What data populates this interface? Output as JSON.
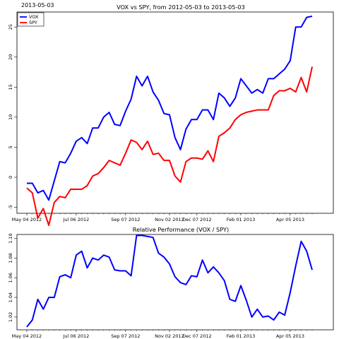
{
  "corner_label": "2013-05-03",
  "chart_data": [
    {
      "type": "line",
      "title": "VOX vs SPY, from 2012-05-03 to 2013-05-03",
      "xlabel": "",
      "ylabel": "",
      "x_tick_labels": [
        "May 04 2012",
        "Jul 06 2012",
        "Sep 07 2012",
        "Nov 02 2012",
        "Dec 07 2012",
        "Feb 01 2013",
        "Apr 05 2013"
      ],
      "x_tick_index": [
        0,
        9,
        18,
        26,
        31,
        39,
        48
      ],
      "ylim": [
        -6,
        27.5
      ],
      "y_ticks": [
        -5,
        0,
        5,
        10,
        15,
        20,
        25
      ],
      "grid": false,
      "legend": {
        "position": "top-left"
      },
      "series": [
        {
          "name": "VOX",
          "color": "#0000ff",
          "values": [
            -1,
            -1,
            -2.6,
            -2.2,
            -3.8,
            -0.6,
            2.6,
            2.4,
            4,
            6,
            6.6,
            5.6,
            8.2,
            8.2,
            10,
            10.8,
            8.8,
            8.6,
            11,
            13,
            16.8,
            15.2,
            16.8,
            14.2,
            12.8,
            10.6,
            10.4,
            6.6,
            4.6,
            8,
            9.6,
            9.6,
            11.2,
            11.2,
            9.6,
            14,
            13.2,
            11.8,
            13.2,
            16.4,
            15.2,
            14,
            14.6,
            14,
            16.4,
            16.4,
            17.2,
            18,
            19.4,
            25,
            25,
            26.6,
            26.8
          ]
        },
        {
          "name": "SPY",
          "color": "#ff0000",
          "values": [
            -1.8,
            -2.6,
            -6.8,
            -5.2,
            -8,
            -4.2,
            -3.2,
            -3.4,
            -2,
            -2,
            -2,
            -1.4,
            0.2,
            0.6,
            1.6,
            2.8,
            2.4,
            2,
            4,
            6.2,
            5.8,
            4.6,
            6,
            3.8,
            4,
            2.8,
            2.8,
            0.2,
            -0.8,
            2.6,
            3.2,
            3.2,
            3,
            4.4,
            2.6,
            6.8,
            7.4,
            8.2,
            9.6,
            10.4,
            10.8,
            11,
            11.2,
            11.2,
            11.2,
            13.6,
            14.4,
            14.4,
            14.8,
            14.2,
            16.6,
            14.2,
            18.4
          ]
        }
      ]
    },
    {
      "type": "line",
      "title": "Relative Performance (VOX / SPY)",
      "xlabel": "",
      "ylabel": "",
      "x_tick_labels": [
        "May 04 2012",
        "Jul 06 2012",
        "Sep 07 2012",
        "Nov 02 2012",
        "Dec 07 2012",
        "Feb 01 2013",
        "Apr 05 2013"
      ],
      "x_tick_index": [
        0,
        9,
        18,
        26,
        31,
        39,
        48
      ],
      "ylim": [
        1.007,
        1.104
      ],
      "y_ticks": [
        1.02,
        1.04,
        1.06,
        1.08,
        1.1
      ],
      "y_tick_labels": [
        "1.02",
        "1.04",
        "1.06",
        "1.08",
        "1.10"
      ],
      "grid": false,
      "series": [
        {
          "color": "#0000ff",
          "values": [
            1.01,
            1.017,
            1.038,
            1.028,
            1.04,
            1.04,
            1.061,
            1.063,
            1.06,
            1.083,
            1.087,
            1.07,
            1.08,
            1.078,
            1.083,
            1.081,
            1.068,
            1.067,
            1.067,
            1.062,
            1.103,
            1.103,
            1.102,
            1.101,
            1.085,
            1.081,
            1.074,
            1.061,
            1.055,
            1.053,
            1.062,
            1.061,
            1.078,
            1.065,
            1.071,
            1.065,
            1.057,
            1.038,
            1.036,
            1.052,
            1.037,
            1.02,
            1.028,
            1.02,
            1.021,
            1.017,
            1.025,
            1.022,
            1.045,
            1.072,
            1.097,
            1.087,
            1.068
          ]
        }
      ]
    }
  ]
}
